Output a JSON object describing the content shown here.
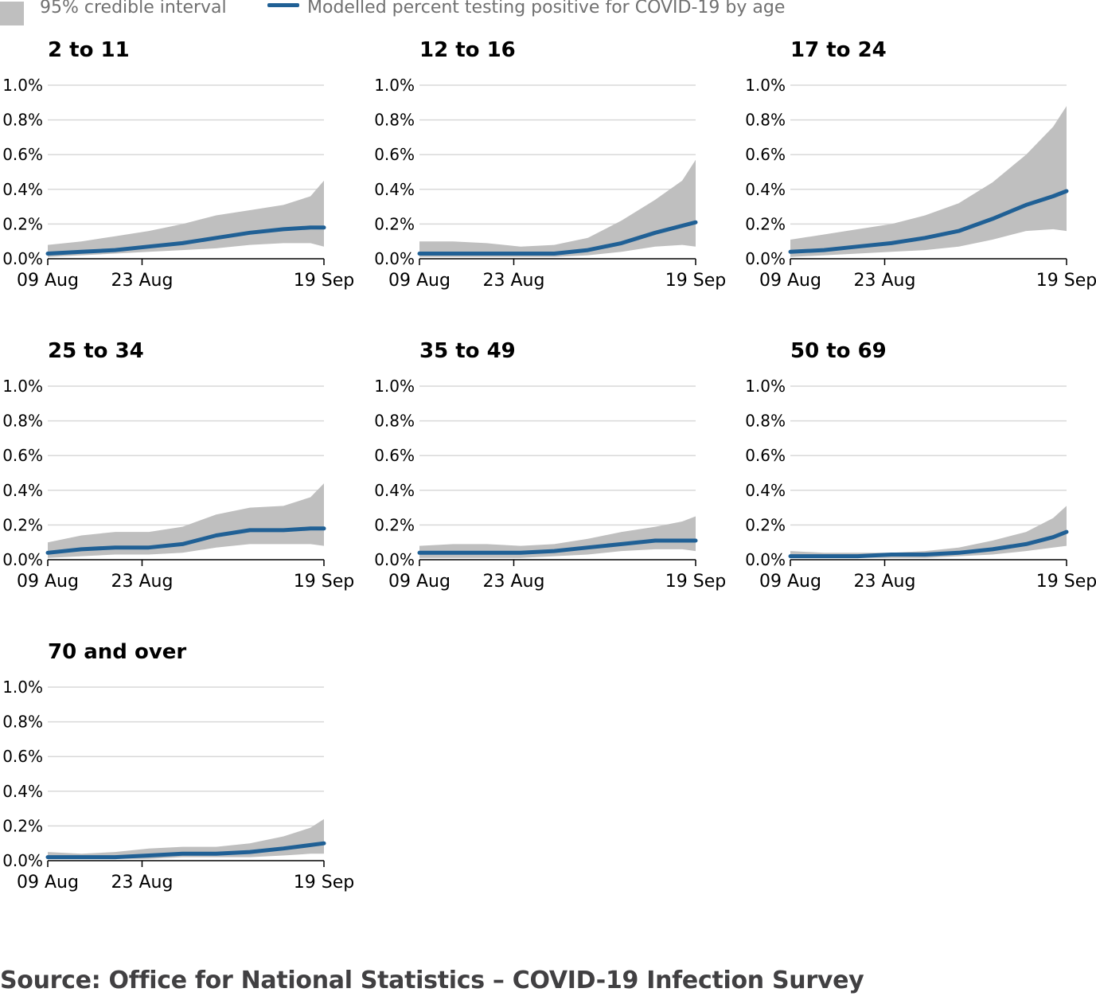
{
  "legend": {
    "interval_label": "95% credible interval",
    "line_label": "Modelled percent testing positive for COVID-19 by age"
  },
  "colors": {
    "line": "#206095",
    "band": "#bfbfbf",
    "grid": "#d9d9d9",
    "axis": "#000000"
  },
  "source": "Source: Office for National Statistics – COVID-19 Infection Survey",
  "chart_data": [
    {
      "type": "area",
      "title": "2 to 11",
      "x": [
        "09 Aug",
        "14 Aug",
        "19 Aug",
        "24 Aug",
        "29 Aug",
        "03 Sep",
        "08 Sep",
        "13 Sep",
        "17 Sep",
        "19 Sep"
      ],
      "xticks": [
        "09 Aug",
        "23 Aug",
        "19 Sep"
      ],
      "yticks": [
        "0.0%",
        "0.2%",
        "0.4%",
        "0.6%",
        "0.8%",
        "1.0%"
      ],
      "ylim": [
        0,
        1.0
      ],
      "series": [
        {
          "name": "Modelled percent testing positive for COVID-19 by age",
          "values": [
            0.03,
            0.04,
            0.05,
            0.07,
            0.09,
            0.12,
            0.15,
            0.17,
            0.18,
            0.18
          ]
        },
        {
          "name": "95% credible interval",
          "lower": [
            0.01,
            0.02,
            0.03,
            0.04,
            0.05,
            0.06,
            0.08,
            0.09,
            0.09,
            0.07
          ],
          "upper": [
            0.08,
            0.1,
            0.13,
            0.16,
            0.2,
            0.25,
            0.28,
            0.31,
            0.36,
            0.45
          ]
        }
      ]
    },
    {
      "type": "area",
      "title": "12 to 16",
      "x": [
        "09 Aug",
        "14 Aug",
        "19 Aug",
        "24 Aug",
        "29 Aug",
        "03 Sep",
        "08 Sep",
        "13 Sep",
        "17 Sep",
        "19 Sep"
      ],
      "xticks": [
        "09 Aug",
        "23 Aug",
        "19 Sep"
      ],
      "yticks": [
        "0.0%",
        "0.2%",
        "0.4%",
        "0.6%",
        "0.8%",
        "1.0%"
      ],
      "ylim": [
        0,
        1.0
      ],
      "series": [
        {
          "name": "Modelled percent testing positive for COVID-19 by age",
          "values": [
            0.03,
            0.03,
            0.03,
            0.03,
            0.03,
            0.05,
            0.09,
            0.15,
            0.19,
            0.21
          ]
        },
        {
          "name": "95% credible interval",
          "lower": [
            0.01,
            0.01,
            0.01,
            0.01,
            0.01,
            0.02,
            0.04,
            0.07,
            0.08,
            0.07
          ],
          "upper": [
            0.1,
            0.1,
            0.09,
            0.07,
            0.08,
            0.12,
            0.22,
            0.34,
            0.45,
            0.57
          ]
        }
      ]
    },
    {
      "type": "area",
      "title": "17 to 24",
      "x": [
        "09 Aug",
        "14 Aug",
        "19 Aug",
        "24 Aug",
        "29 Aug",
        "03 Sep",
        "08 Sep",
        "13 Sep",
        "17 Sep",
        "19 Sep"
      ],
      "xticks": [
        "09 Aug",
        "23 Aug",
        "19 Sep"
      ],
      "yticks": [
        "0.0%",
        "0.2%",
        "0.4%",
        "0.6%",
        "0.8%",
        "1.0%"
      ],
      "ylim": [
        0,
        1.0
      ],
      "series": [
        {
          "name": "Modelled percent testing positive for COVID-19 by age",
          "values": [
            0.04,
            0.05,
            0.07,
            0.09,
            0.12,
            0.16,
            0.23,
            0.31,
            0.36,
            0.39
          ]
        },
        {
          "name": "95% credible interval",
          "lower": [
            0.01,
            0.02,
            0.03,
            0.04,
            0.05,
            0.07,
            0.11,
            0.16,
            0.17,
            0.16
          ],
          "upper": [
            0.11,
            0.14,
            0.17,
            0.2,
            0.25,
            0.32,
            0.44,
            0.6,
            0.76,
            0.88
          ]
        }
      ]
    },
    {
      "type": "area",
      "title": "25 to 34",
      "x": [
        "09 Aug",
        "14 Aug",
        "19 Aug",
        "24 Aug",
        "29 Aug",
        "03 Sep",
        "08 Sep",
        "13 Sep",
        "17 Sep",
        "19 Sep"
      ],
      "xticks": [
        "09 Aug",
        "23 Aug",
        "19 Sep"
      ],
      "yticks": [
        "0.0%",
        "0.2%",
        "0.4%",
        "0.6%",
        "0.8%",
        "1.0%"
      ],
      "ylim": [
        0,
        1.0
      ],
      "series": [
        {
          "name": "Modelled percent testing positive for COVID-19 by age",
          "values": [
            0.04,
            0.06,
            0.07,
            0.07,
            0.09,
            0.14,
            0.17,
            0.17,
            0.18,
            0.18
          ]
        },
        {
          "name": "95% credible interval",
          "lower": [
            0.01,
            0.02,
            0.03,
            0.03,
            0.04,
            0.07,
            0.09,
            0.09,
            0.09,
            0.08
          ],
          "upper": [
            0.1,
            0.14,
            0.16,
            0.16,
            0.19,
            0.26,
            0.3,
            0.31,
            0.36,
            0.44
          ]
        }
      ]
    },
    {
      "type": "area",
      "title": "35 to 49",
      "x": [
        "09 Aug",
        "14 Aug",
        "19 Aug",
        "24 Aug",
        "29 Aug",
        "03 Sep",
        "08 Sep",
        "13 Sep",
        "17 Sep",
        "19 Sep"
      ],
      "xticks": [
        "09 Aug",
        "23 Aug",
        "19 Sep"
      ],
      "yticks": [
        "0.0%",
        "0.2%",
        "0.4%",
        "0.6%",
        "0.8%",
        "1.0%"
      ],
      "ylim": [
        0,
        1.0
      ],
      "series": [
        {
          "name": "Modelled percent testing positive for COVID-19 by age",
          "values": [
            0.04,
            0.04,
            0.04,
            0.04,
            0.05,
            0.07,
            0.09,
            0.11,
            0.11,
            0.11
          ]
        },
        {
          "name": "95% credible interval",
          "lower": [
            0.01,
            0.01,
            0.01,
            0.01,
            0.02,
            0.03,
            0.05,
            0.06,
            0.06,
            0.05
          ],
          "upper": [
            0.08,
            0.09,
            0.09,
            0.08,
            0.09,
            0.12,
            0.16,
            0.19,
            0.22,
            0.25
          ]
        }
      ]
    },
    {
      "type": "area",
      "title": "50 to 69",
      "x": [
        "09 Aug",
        "14 Aug",
        "19 Aug",
        "24 Aug",
        "29 Aug",
        "03 Sep",
        "08 Sep",
        "13 Sep",
        "17 Sep",
        "19 Sep"
      ],
      "xticks": [
        "09 Aug",
        "23 Aug",
        "19 Sep"
      ],
      "yticks": [
        "0.0%",
        "0.2%",
        "0.4%",
        "0.6%",
        "0.8%",
        "1.0%"
      ],
      "ylim": [
        0,
        1.0
      ],
      "series": [
        {
          "name": "Modelled percent testing positive for COVID-19 by age",
          "values": [
            0.02,
            0.02,
            0.02,
            0.03,
            0.03,
            0.04,
            0.06,
            0.09,
            0.13,
            0.16
          ]
        },
        {
          "name": "95% credible interval",
          "lower": [
            0.01,
            0.01,
            0.01,
            0.01,
            0.01,
            0.02,
            0.03,
            0.05,
            0.07,
            0.08
          ],
          "upper": [
            0.05,
            0.04,
            0.04,
            0.04,
            0.05,
            0.07,
            0.11,
            0.16,
            0.24,
            0.31
          ]
        }
      ]
    },
    {
      "type": "area",
      "title": "70 and over",
      "x": [
        "09 Aug",
        "14 Aug",
        "19 Aug",
        "24 Aug",
        "29 Aug",
        "03 Sep",
        "08 Sep",
        "13 Sep",
        "17 Sep",
        "19 Sep"
      ],
      "xticks": [
        "09 Aug",
        "23 Aug",
        "19 Sep"
      ],
      "yticks": [
        "0.0%",
        "0.2%",
        "0.4%",
        "0.6%",
        "0.8%",
        "1.0%"
      ],
      "ylim": [
        0,
        1.0
      ],
      "series": [
        {
          "name": "Modelled percent testing positive for COVID-19 by age",
          "values": [
            0.02,
            0.02,
            0.02,
            0.03,
            0.04,
            0.04,
            0.05,
            0.07,
            0.09,
            0.1
          ]
        },
        {
          "name": "95% credible interval",
          "lower": [
            0.01,
            0.01,
            0.01,
            0.01,
            0.02,
            0.02,
            0.02,
            0.03,
            0.04,
            0.04
          ],
          "upper": [
            0.05,
            0.04,
            0.05,
            0.07,
            0.08,
            0.08,
            0.1,
            0.14,
            0.19,
            0.24
          ]
        }
      ]
    }
  ]
}
